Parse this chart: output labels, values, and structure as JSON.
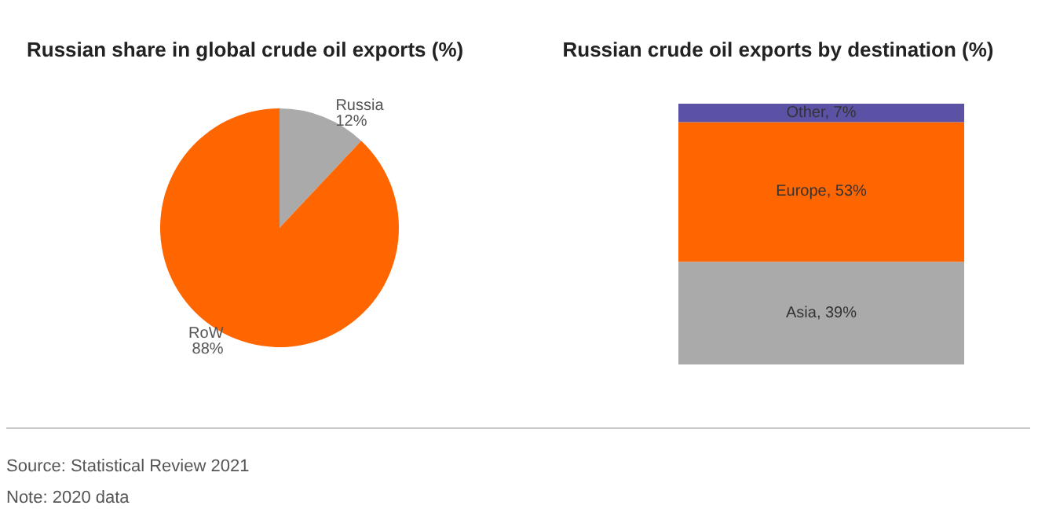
{
  "chart_data": [
    {
      "type": "pie",
      "title": "Russian share in global crude oil exports (%)",
      "categories": [
        "Russia",
        "RoW"
      ],
      "values": [
        12,
        88
      ],
      "colors": [
        "#aaaaaa",
        "#ff6600"
      ],
      "value_labels": [
        "12%",
        "88%"
      ],
      "annotations": [
        "Source: Statistical Review 2021",
        "Note: 2020 data"
      ]
    },
    {
      "type": "bar",
      "stacked": true,
      "title": "Russian crude oil exports by destination (%)",
      "categories": [
        null
      ],
      "series": [
        {
          "color": "#aaaaaa",
          "values": [
            39
          ],
          "value_labels": [
            "Asia, 39%"
          ]
        },
        {
          "color": "#ff6600",
          "values": [
            53
          ],
          "value_labels": [
            "Europe, 53%"
          ]
        },
        {
          "color": "#5b52a5",
          "values": [
            7
          ],
          "value_labels": [
            "Other, 7%"
          ]
        }
      ]
    }
  ]
}
